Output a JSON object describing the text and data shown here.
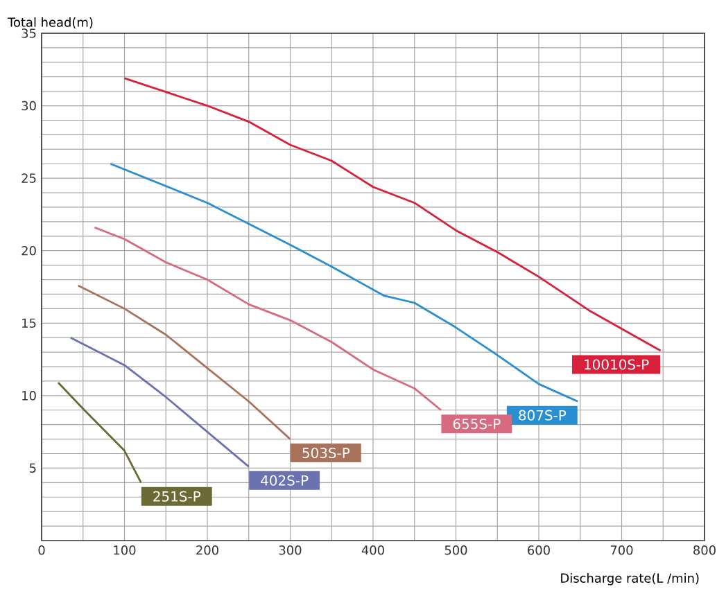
{
  "chart_data": {
    "type": "line",
    "xlabel": "Discharge rate(L /min)",
    "ylabel": "Total head(m)",
    "xlim": [
      0,
      800
    ],
    "ylim": [
      0,
      35
    ],
    "xticks": [
      0,
      {
        "value": 50,
        "label": null
      },
      100,
      {
        "value": 150,
        "label": null
      },
      200,
      {
        "value": 250,
        "label": null
      },
      300,
      {
        "value": 350,
        "label": null
      },
      400,
      {
        "value": 450,
        "label": null
      },
      500,
      {
        "value": 550,
        "label": null
      },
      600,
      {
        "value": 650,
        "label": null
      },
      700,
      {
        "value": 750,
        "label": null
      },
      800
    ],
    "yticks": [
      {
        "value": 1,
        "label": null
      },
      {
        "value": 2,
        "label": null
      },
      {
        "value": 3,
        "label": null
      },
      {
        "value": 4,
        "label": null
      },
      5,
      {
        "value": 6,
        "label": null
      },
      {
        "value": 7,
        "label": null
      },
      {
        "value": 8,
        "label": null
      },
      {
        "value": 9,
        "label": null
      },
      10,
      {
        "value": 11,
        "label": null
      },
      {
        "value": 12,
        "label": null
      },
      {
        "value": 13,
        "label": null
      },
      {
        "value": 14,
        "label": null
      },
      15,
      {
        "value": 16,
        "label": null
      },
      {
        "value": 17,
        "label": null
      },
      {
        "value": 18,
        "label": null
      },
      {
        "value": 19,
        "label": null
      },
      20,
      {
        "value": 21,
        "label": null
      },
      {
        "value": 22,
        "label": null
      },
      {
        "value": 23,
        "label": null
      },
      {
        "value": 24,
        "label": null
      },
      25,
      {
        "value": 26,
        "label": null
      },
      {
        "value": 27,
        "label": null
      },
      {
        "value": 28,
        "label": null
      },
      {
        "value": 29,
        "label": null
      },
      30,
      {
        "value": 31,
        "label": null
      },
      {
        "value": 32,
        "label": null
      },
      {
        "value": 33,
        "label": null
      },
      {
        "value": 34,
        "label": null
      },
      35
    ],
    "grid": true,
    "legend": false,
    "marker": "none",
    "line_style": "solid",
    "series": [
      {
        "name": "10010S-P",
        "color": "#d9203a",
        "x": [
          100,
          200,
          250,
          300,
          350,
          400,
          450,
          500,
          550,
          600,
          663,
          747
        ],
        "values": [
          31.9,
          30.0,
          28.9,
          27.3,
          26.2,
          24.4,
          23.3,
          21.4,
          19.9,
          18.2,
          15.8,
          13.1
        ]
      },
      {
        "name": "807S-P",
        "color": "#2a8fd0",
        "x": [
          83,
          200,
          300,
          350,
          413,
          450,
          500,
          550,
          600,
          647
        ],
        "values": [
          26.0,
          23.3,
          20.4,
          18.9,
          16.9,
          16.4,
          14.7,
          12.8,
          10.8,
          9.6
        ]
      },
      {
        "name": "655S-P",
        "color": "#d86a80",
        "x": [
          64,
          100,
          150,
          200,
          250,
          300,
          350,
          400,
          450,
          482
        ],
        "values": [
          21.6,
          20.8,
          19.2,
          18.0,
          16.3,
          15.2,
          13.7,
          11.8,
          10.5,
          9.0
        ]
      },
      {
        "name": "503S-P",
        "color": "#a8735a",
        "x": [
          44,
          100,
          150,
          200,
          250,
          300
        ],
        "values": [
          17.6,
          16.0,
          14.2,
          11.9,
          9.6,
          7.0
        ]
      },
      {
        "name": "402S-P",
        "color": "#6a72b0",
        "x": [
          35,
          100,
          150,
          200,
          250
        ],
        "values": [
          14.0,
          12.1,
          9.9,
          7.5,
          5.1
        ]
      },
      {
        "name": "251S-P",
        "color": "#6b6a35",
        "x": [
          20,
          50,
          100,
          120
        ],
        "values": [
          10.9,
          9.1,
          6.2,
          4.0
        ]
      }
    ]
  }
}
